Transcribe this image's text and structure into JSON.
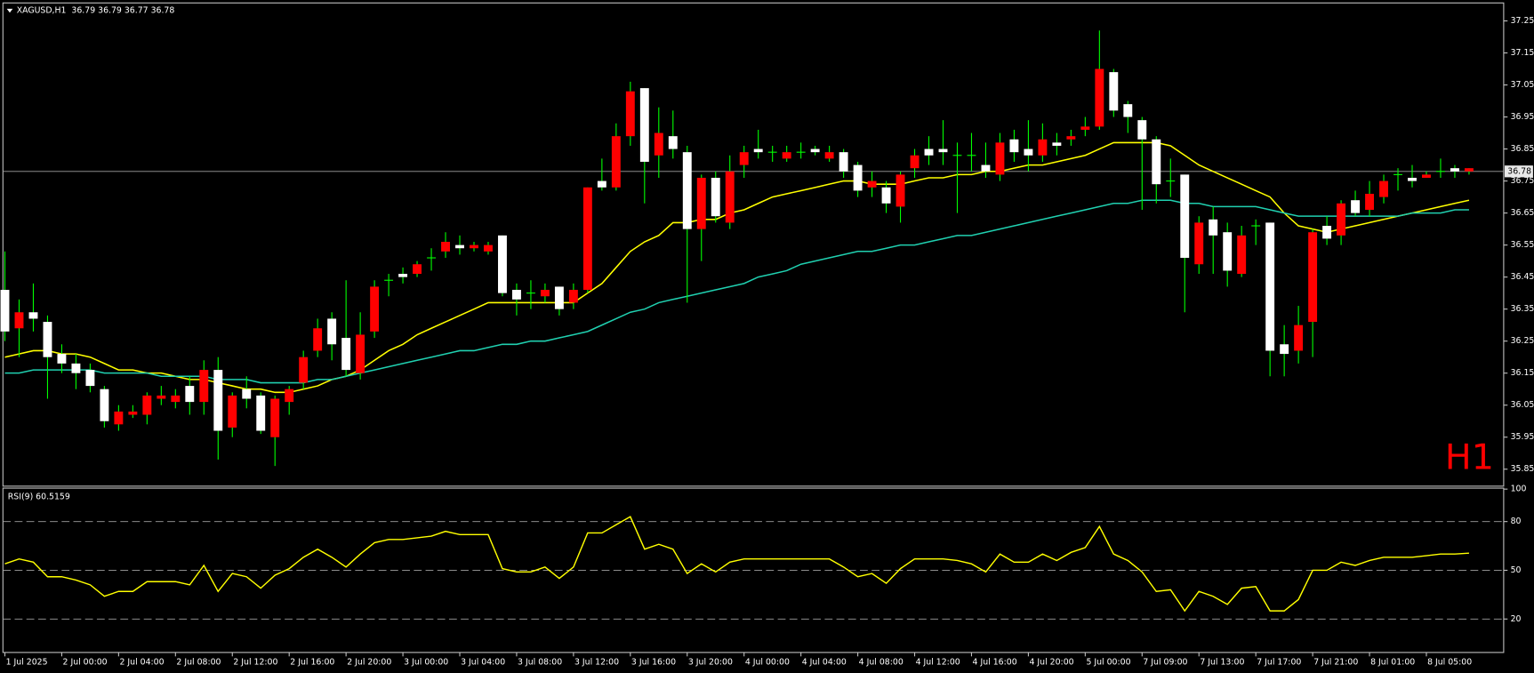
{
  "chart_data": [
    {
      "type": "candlestick",
      "title": "XAGUSD,H1  36.79 36.79 36.77 36.78",
      "watermark": "H1",
      "categories": [
        "1 Jul 2025",
        null,
        null,
        null,
        "2 Jul 00:00",
        null,
        null,
        null,
        "2 Jul 04:00",
        null,
        null,
        null,
        "2 Jul 08:00",
        null,
        null,
        null,
        "2 Jul 12:00",
        null,
        null,
        null,
        "2 Jul 16:00",
        null,
        null,
        null,
        "2 Jul 20:00",
        null,
        null,
        null,
        "3 Jul 00:00",
        null,
        null,
        null,
        "3 Jul 04:00",
        null,
        null,
        null,
        "3 Jul 08:00",
        null,
        null,
        null,
        "3 Jul 12:00",
        null,
        null,
        null,
        "3 Jul 16:00",
        null,
        null,
        null,
        "3 Jul 20:00",
        null,
        null,
        null,
        "4 Jul 00:00",
        null,
        null,
        null,
        "4 Jul 04:00",
        null,
        null,
        null,
        "4 Jul 08:00",
        null,
        null,
        null,
        "4 Jul 12:00",
        null,
        null,
        null,
        "4 Jul 16:00",
        null,
        null,
        null,
        "4 Jul 20:00",
        null,
        null,
        null,
        "5 Jul 00:00",
        null,
        null,
        null,
        "7 Jul 09:00",
        null,
        null,
        null,
        "7 Jul 13:00",
        null,
        null,
        null,
        "7 Jul 17:00",
        null,
        null,
        null,
        "7 Jul 21:00",
        null,
        null,
        null,
        "8 Jul 01:00",
        null,
        null,
        null,
        "8 Jul 05:00",
        null,
        null,
        null
      ],
      "open": [
        36.28,
        36.34,
        36.32,
        36.2,
        36.18,
        36.15,
        36.11,
        36.0,
        36.03,
        36.03,
        36.08,
        36.08,
        36.08,
        36.06,
        36.16,
        35.97,
        36.08,
        36.07,
        35.97,
        36.07,
        36.1,
        36.2,
        36.29,
        36.24,
        36.16,
        36.27,
        36.42,
        36.44,
        36.45,
        36.49,
        36.51,
        36.56,
        36.54,
        36.55,
        36.55,
        36.4,
        36.38,
        36.4,
        36.41,
        36.35,
        36.41,
        36.73,
        36.73,
        36.89,
        37.03,
        36.81,
        36.9,
        36.85,
        36.6,
        36.76,
        36.64,
        36.78,
        36.84,
        36.84,
        36.84,
        36.84,
        36.84,
        36.84,
        36.84,
        36.78,
        36.72,
        36.75,
        36.68,
        36.77,
        36.83,
        36.83,
        36.84,
        36.83,
        36.83,
        36.78,
        36.87,
        36.84,
        36.83,
        36.88,
        36.86,
        36.89,
        36.92,
        37.1,
        36.97,
        36.95,
        36.88,
        36.74,
        36.75,
        36.51,
        36.62,
        36.58,
        36.47,
        36.58,
        36.61,
        36.22,
        36.21,
        36.3,
        36.59,
        36.57,
        36.68,
        36.65,
        36.71,
        36.75,
        36.77,
        36.75,
        36.77,
        36.78,
        36.78,
        36.79
      ],
      "high": [
        36.53,
        36.38,
        36.43,
        36.33,
        36.24,
        36.21,
        36.18,
        36.11,
        36.05,
        36.05,
        36.09,
        36.11,
        36.1,
        36.14,
        36.19,
        36.2,
        36.09,
        36.14,
        36.09,
        36.08,
        36.11,
        36.22,
        36.32,
        36.34,
        36.44,
        36.34,
        36.44,
        36.46,
        36.48,
        36.5,
        36.54,
        36.59,
        36.58,
        36.56,
        36.56,
        36.58,
        36.43,
        36.44,
        36.43,
        36.42,
        36.43,
        36.73,
        36.82,
        36.93,
        37.06,
        37.04,
        36.98,
        36.97,
        36.86,
        36.77,
        36.78,
        36.83,
        36.86,
        36.91,
        36.86,
        36.86,
        36.87,
        36.86,
        36.86,
        36.85,
        36.81,
        36.78,
        36.75,
        36.78,
        36.85,
        36.89,
        36.94,
        36.87,
        36.9,
        36.87,
        36.9,
        36.91,
        36.94,
        36.93,
        36.9,
        36.91,
        36.95,
        37.22,
        37.1,
        37.0,
        36.95,
        36.89,
        36.82,
        36.77,
        36.64,
        36.67,
        36.62,
        36.61,
        36.63,
        36.62,
        36.3,
        36.36,
        36.6,
        36.64,
        36.69,
        36.72,
        36.75,
        36.77,
        36.79,
        36.8,
        36.78,
        36.82,
        36.8,
        36.79
      ],
      "low": [
        36.25,
        36.2,
        36.28,
        36.07,
        36.15,
        36.1,
        36.09,
        35.98,
        35.97,
        36.01,
        35.99,
        36.05,
        36.04,
        36.02,
        36.02,
        35.88,
        35.95,
        36.04,
        35.96,
        35.86,
        36.02,
        36.1,
        36.2,
        36.19,
        36.14,
        36.13,
        36.26,
        36.39,
        36.43,
        36.45,
        36.47,
        36.51,
        36.52,
        36.53,
        36.52,
        36.39,
        36.33,
        36.35,
        36.37,
        36.33,
        36.35,
        36.4,
        36.72,
        36.72,
        36.86,
        36.68,
        36.76,
        36.82,
        36.37,
        36.5,
        36.62,
        36.6,
        36.76,
        36.82,
        36.81,
        36.81,
        36.82,
        36.83,
        36.81,
        36.76,
        36.7,
        36.7,
        36.65,
        36.62,
        36.76,
        36.8,
        36.8,
        36.65,
        36.78,
        36.76,
        36.75,
        36.81,
        36.78,
        36.81,
        36.83,
        36.86,
        36.89,
        36.91,
        36.95,
        36.9,
        36.66,
        36.68,
        36.7,
        36.34,
        36.46,
        36.46,
        36.42,
        36.45,
        36.55,
        36.14,
        36.14,
        36.18,
        36.2,
        36.55,
        36.55,
        36.64,
        36.64,
        36.68,
        36.72,
        36.73,
        36.76,
        36.76,
        36.76,
        36.77
      ],
      "close": [
        36.41,
        36.29,
        36.34,
        36.31,
        36.21,
        36.18,
        36.16,
        36.1,
        35.99,
        36.02,
        36.02,
        36.07,
        36.06,
        36.11,
        36.06,
        36.16,
        35.98,
        36.1,
        36.08,
        35.95,
        36.06,
        36.12,
        36.22,
        36.32,
        36.26,
        36.15,
        36.28,
        36.44,
        36.46,
        36.46,
        36.51,
        36.53,
        36.55,
        36.54,
        36.53,
        36.58,
        36.41,
        36.4,
        36.39,
        36.42,
        36.37,
        36.41,
        36.75,
        36.73,
        36.89,
        37.04,
        36.83,
        36.89,
        36.84,
        36.6,
        36.76,
        36.62,
        36.8,
        36.85,
        36.84,
        36.82,
        36.84,
        36.85,
        36.82,
        36.84,
        36.8,
        36.73,
        36.73,
        36.67,
        36.79,
        36.85,
        36.85,
        36.83,
        36.83,
        36.8,
        36.77,
        36.88,
        36.85,
        36.83,
        36.87,
        36.88,
        36.91,
        36.92,
        37.09,
        36.99,
        36.94,
        36.88,
        36.75,
        36.77,
        36.49,
        36.63,
        36.59,
        36.46,
        36.61,
        36.62,
        36.24,
        36.22,
        36.31,
        36.61,
        36.58,
        36.69,
        36.66,
        36.7,
        36.77,
        36.76,
        36.76,
        36.78,
        36.79,
        36.78
      ],
      "lines": [
        {
          "color": "#ffff00",
          "values": [
            36.2,
            36.21,
            36.22,
            36.22,
            36.21,
            36.21,
            36.2,
            36.18,
            36.16,
            36.16,
            36.15,
            36.15,
            36.14,
            36.13,
            36.13,
            36.12,
            36.11,
            36.1,
            36.1,
            36.09,
            36.09,
            36.1,
            36.11,
            36.13,
            36.14,
            36.16,
            36.19,
            36.22,
            36.24,
            36.27,
            36.29,
            36.31,
            36.33,
            36.35,
            36.37,
            36.37,
            36.37,
            36.37,
            36.37,
            36.37,
            36.37,
            36.4,
            36.43,
            36.48,
            36.53,
            36.56,
            36.58,
            36.62,
            36.62,
            36.63,
            36.63,
            36.65,
            36.66,
            36.68,
            36.7,
            36.71,
            36.72,
            36.73,
            36.74,
            36.75,
            36.75,
            36.74,
            36.74,
            36.74,
            36.75,
            36.76,
            36.76,
            36.77,
            36.77,
            36.78,
            36.78,
            36.79,
            36.8,
            36.8,
            36.81,
            36.82,
            36.83,
            36.85,
            36.87,
            36.87,
            36.87,
            36.87,
            36.86,
            36.83,
            36.8,
            36.78,
            36.76,
            36.74,
            36.72,
            36.7,
            36.65,
            36.61,
            36.6,
            36.59,
            36.6,
            36.61,
            36.62,
            36.63,
            36.64,
            36.65,
            36.66,
            36.67,
            36.68,
            36.69
          ]
        },
        {
          "color": "#20d0b0",
          "values": [
            36.15,
            36.15,
            36.16,
            36.16,
            36.16,
            36.16,
            36.16,
            36.15,
            36.15,
            36.15,
            36.15,
            36.14,
            36.14,
            36.14,
            36.14,
            36.13,
            36.13,
            36.13,
            36.12,
            36.12,
            36.12,
            36.12,
            36.13,
            36.13,
            36.14,
            36.15,
            36.16,
            36.17,
            36.18,
            36.19,
            36.2,
            36.21,
            36.22,
            36.22,
            36.23,
            36.24,
            36.24,
            36.25,
            36.25,
            36.26,
            36.27,
            36.28,
            36.3,
            36.32,
            36.34,
            36.35,
            36.37,
            36.38,
            36.39,
            36.4,
            36.41,
            36.42,
            36.43,
            36.45,
            36.46,
            36.47,
            36.49,
            36.5,
            36.51,
            36.52,
            36.53,
            36.53,
            36.54,
            36.55,
            36.55,
            36.56,
            36.57,
            36.58,
            36.58,
            36.59,
            36.6,
            36.61,
            36.62,
            36.63,
            36.64,
            36.65,
            36.66,
            36.67,
            36.68,
            36.68,
            36.69,
            36.69,
            36.69,
            36.68,
            36.68,
            36.67,
            36.67,
            36.67,
            36.67,
            36.66,
            36.65,
            36.64,
            36.64,
            36.64,
            36.64,
            36.64,
            36.64,
            36.64,
            36.64,
            36.65,
            36.65,
            36.65,
            36.66,
            36.66
          ]
        }
      ],
      "up_color": "#ffffff",
      "down_color": "#ff0000",
      "wick_color": "#00ff00",
      "watermark_color": "#ff0000",
      "last_price": 36.78,
      "ylim": [
        35.8,
        37.3
      ],
      "yticks": [
        35.85,
        35.95,
        36.05,
        36.15,
        36.25,
        36.35,
        36.45,
        36.55,
        36.65,
        36.75,
        36.85,
        36.95,
        37.05,
        37.15,
        37.25
      ],
      "grid": false
    },
    {
      "type": "line",
      "title": "RSI(9) 60.5159",
      "color": "#ffff00",
      "values": [
        54,
        57,
        55,
        46,
        46,
        44,
        41,
        34,
        37,
        37,
        43,
        43,
        43,
        41,
        53,
        37,
        48,
        46,
        39,
        47,
        51,
        58,
        63,
        58,
        52,
        60,
        67,
        69,
        69,
        70,
        71,
        74,
        72,
        72,
        72,
        51,
        49,
        49,
        52,
        45,
        52,
        73,
        73,
        78,
        83,
        63,
        66,
        63,
        48,
        54,
        49,
        55,
        57,
        57,
        57,
        57,
        57,
        57,
        57,
        52,
        46,
        48,
        42,
        51,
        57,
        57,
        57,
        56,
        54,
        49,
        60,
        55,
        55,
        60,
        56,
        61,
        64,
        77,
        60,
        56,
        49,
        37,
        38,
        25,
        37,
        34,
        29,
        39,
        40,
        25,
        25,
        32,
        50,
        50,
        55,
        53,
        56,
        58,
        58,
        58,
        59,
        60,
        60,
        60.5159
      ],
      "ylim": [
        0,
        100
      ],
      "yticks": [
        20,
        50,
        80,
        100
      ],
      "levels": [
        20,
        50,
        80
      ],
      "grid": false
    }
  ]
}
